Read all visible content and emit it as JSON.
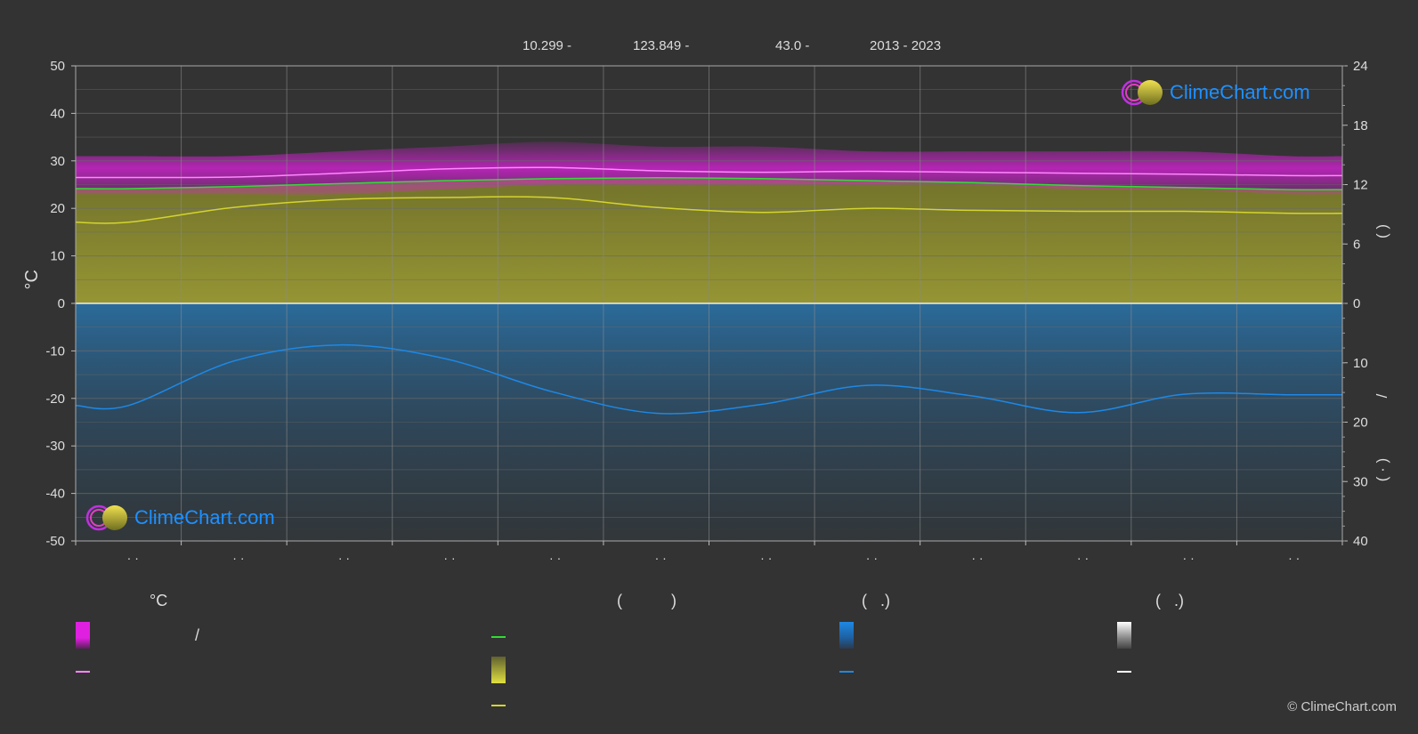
{
  "header": {
    "lat": "10.299 -",
    "lon": "123.849 -",
    "elev": "43.0 -",
    "years": "2013 - 2023"
  },
  "brand": {
    "logo_text": "ClimeChart.com",
    "copyright": "© ClimeChart.com"
  },
  "legend": {
    "col1_title": "°C",
    "col1_slash": "/",
    "col2_title": "(           )",
    "col3_title": "(   .)",
    "col4_title": "(   .)"
  },
  "colors": {
    "background": "#333333",
    "temp_band": "#e020e0",
    "temp_mean": "#ff88ff",
    "daylight": "#33dd33",
    "sunshine": "#d4d430",
    "sunshine_fill": "#9a9a30",
    "precip": "#1e88e5",
    "precip_fill": "#2a6ea0",
    "white_line": "#ffffff"
  },
  "chart_data": {
    "type": "line",
    "ylabel_left": "°C",
    "ylim_left": [
      -50,
      50
    ],
    "left_ticks": [
      "50",
      "40",
      "30",
      "20",
      "10",
      "0",
      "-10",
      "-20",
      "-30",
      "-40",
      "-50"
    ],
    "right_ticks_upper": [
      "24",
      "18",
      "12",
      "6",
      "0"
    ],
    "right_ticks_lower": [
      "10",
      "20",
      "30",
      "40"
    ],
    "right_label_fragments": [
      "(   )",
      "/",
      "(   ·   )"
    ],
    "month_labels": [
      "· ·",
      "· ·",
      "· ·",
      "· ·",
      "· ·",
      "· ·",
      "· ·",
      "· ·",
      "· ·",
      "· ·",
      "· ·",
      "· ·"
    ],
    "grid": true,
    "x_months": [
      0.5,
      1.5,
      2.5,
      3.5,
      4.5,
      5.5,
      6.5,
      7.5,
      8.5,
      9.5,
      10.5,
      11.5
    ],
    "series": [
      {
        "key": "temp_max",
        "values": [
          31,
          31,
          32,
          33,
          34,
          33,
          33,
          32,
          32,
          32,
          32,
          31
        ]
      },
      {
        "key": "temp_min",
        "values": [
          23,
          23,
          23,
          24,
          25,
          25,
          25,
          25,
          25,
          24,
          24,
          23
        ]
      },
      {
        "key": "temp_mean",
        "values": [
          26.5,
          26.6,
          27.4,
          28.3,
          28.6,
          27.9,
          27.6,
          27.8,
          27.6,
          27.4,
          27.2,
          26.9
        ]
      },
      {
        "key": "daylight_hours",
        "values": [
          11.6,
          11.8,
          12.1,
          12.4,
          12.6,
          12.7,
          12.6,
          12.4,
          12.2,
          11.9,
          11.7,
          11.5
        ]
      },
      {
        "key": "sunshine_hours",
        "values": [
          8.2,
          9.7,
          10.5,
          10.7,
          10.7,
          9.7,
          9.2,
          9.6,
          9.4,
          9.3,
          9.3,
          9.1
        ]
      },
      {
        "key": "precip_mm_per_day",
        "values": [
          17.2,
          9.7,
          7.0,
          9.3,
          14.8,
          18.5,
          17.0,
          13.8,
          15.6,
          18.4,
          15.3,
          15.4
        ]
      }
    ]
  }
}
